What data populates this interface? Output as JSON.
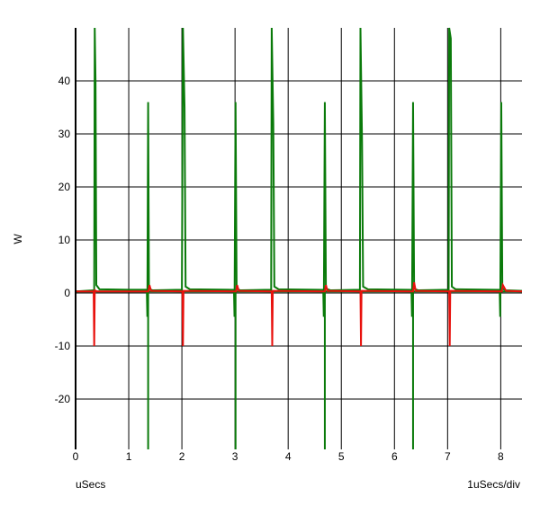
{
  "chart_data": {
    "type": "line",
    "title": "",
    "ylabel": "W",
    "xlabel": "uSecs",
    "x_scale_label": "1uSecs/div",
    "xlim": [
      0,
      8.4
    ],
    "ylim": [
      -29.5,
      50
    ],
    "grid": true,
    "x_ticks": [
      "0",
      "1",
      "2",
      "3",
      "4",
      "5",
      "6",
      "7",
      "8"
    ],
    "y_ticks": [
      "40",
      "30",
      "20",
      "10",
      "0",
      "-10",
      "-20"
    ],
    "colors": {
      "red_series": "#e8100c",
      "green_series": "#0a7a0a",
      "grid": "#000000"
    },
    "series": [
      {
        "color": "#0a7a0a",
        "baseline": [
          [
            0,
            0.3
          ],
          [
            8.4,
            0.3
          ]
        ],
        "segments": [
          [
            [
              0.0,
              0.3
            ],
            [
              0.35,
              0.5
            ],
            [
              0.36,
              50
            ],
            [
              0.375,
              40
            ],
            [
              0.39,
              1.5
            ],
            [
              0.45,
              0.7
            ],
            [
              1.0,
              0.6
            ],
            [
              1.34,
              0.6
            ],
            [
              1.35,
              -4.5
            ],
            [
              1.365,
              36
            ],
            [
              1.38,
              0.8
            ],
            [
              1.45,
              0.5
            ],
            [
              2.0,
              0.6
            ],
            [
              2.02,
              50
            ],
            [
              2.05,
              35
            ],
            [
              2.07,
              1.2
            ],
            [
              2.15,
              0.7
            ],
            [
              2.98,
              0.6
            ],
            [
              2.99,
              -4.5
            ],
            [
              3.01,
              36
            ],
            [
              3.03,
              0.8
            ],
            [
              3.1,
              0.5
            ],
            [
              3.68,
              0.6
            ],
            [
              3.69,
              50
            ],
            [
              3.72,
              32
            ],
            [
              3.74,
              1.2
            ],
            [
              3.82,
              0.7
            ],
            [
              4.66,
              0.6
            ],
            [
              4.67,
              -4.5
            ],
            [
              4.69,
              36
            ],
            [
              4.71,
              0.8
            ],
            [
              4.8,
              0.5
            ],
            [
              5.35,
              0.6
            ],
            [
              5.36,
              50
            ],
            [
              5.39,
              28.5
            ],
            [
              5.41,
              1.2
            ],
            [
              5.5,
              0.7
            ],
            [
              6.32,
              0.6
            ],
            [
              6.33,
              -4.5
            ],
            [
              6.35,
              36
            ],
            [
              6.37,
              0.8
            ],
            [
              6.45,
              0.5
            ],
            [
              7.02,
              0.6
            ],
            [
              7.03,
              50
            ],
            [
              7.06,
              48
            ],
            [
              7.08,
              1.2
            ],
            [
              7.15,
              0.7
            ],
            [
              7.98,
              0.6
            ],
            [
              7.99,
              -4.5
            ],
            [
              8.01,
              36
            ],
            [
              8.03,
              0.8
            ],
            [
              8.1,
              0.5
            ],
            [
              8.4,
              0.4
            ]
          ]
        ],
        "drops": [
          [
            1.365,
            -29.5
          ],
          [
            3.01,
            -29.5
          ],
          [
            4.69,
            -29.5
          ],
          [
            6.35,
            -29.5
          ]
        ]
      },
      {
        "color": "#e8100c",
        "segments": [
          [
            [
              0.0,
              0.3
            ],
            [
              0.34,
              0.3
            ],
            [
              0.35,
              -10
            ],
            [
              0.36,
              0.5
            ],
            [
              0.4,
              0.3
            ],
            [
              1.37,
              0.3
            ],
            [
              1.39,
              1.5
            ],
            [
              1.42,
              0.4
            ],
            [
              2.01,
              0.3
            ],
            [
              2.02,
              -10
            ],
            [
              2.03,
              0.4
            ],
            [
              3.02,
              0.3
            ],
            [
              3.04,
              1.5
            ],
            [
              3.07,
              0.4
            ],
            [
              3.69,
              0.3
            ],
            [
              3.7,
              -10
            ],
            [
              3.71,
              0.4
            ],
            [
              4.69,
              0.3
            ],
            [
              4.71,
              1.5
            ],
            [
              4.74,
              0.4
            ],
            [
              5.36,
              0.3
            ],
            [
              5.37,
              -10
            ],
            [
              5.38,
              0.4
            ],
            [
              6.35,
              0.3
            ],
            [
              6.37,
              2
            ],
            [
              6.4,
              0.4
            ],
            [
              7.03,
              0.3
            ],
            [
              7.04,
              -10
            ],
            [
              7.05,
              0.4
            ],
            [
              8.02,
              0.3
            ],
            [
              8.04,
              1.5
            ],
            [
              8.1,
              0.4
            ],
            [
              8.4,
              0.3
            ]
          ]
        ]
      }
    ]
  }
}
